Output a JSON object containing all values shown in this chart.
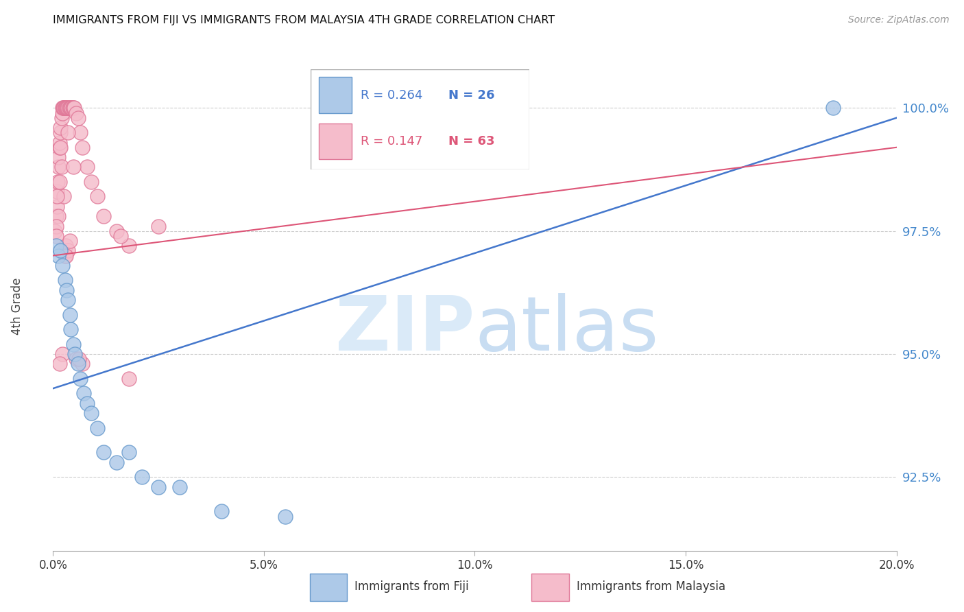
{
  "title": "IMMIGRANTS FROM FIJI VS IMMIGRANTS FROM MALAYSIA 4TH GRADE CORRELATION CHART",
  "source": "Source: ZipAtlas.com",
  "ylabel": "4th Grade",
  "xlim": [
    0.0,
    20.0
  ],
  "ylim": [
    91.0,
    101.2
  ],
  "yticks": [
    92.5,
    95.0,
    97.5,
    100.0
  ],
  "ytick_labels": [
    "92.5%",
    "95.0%",
    "97.5%",
    "100.0%"
  ],
  "xtick_positions": [
    0,
    5,
    10,
    15,
    20
  ],
  "xtick_labels": [
    "0.0%",
    "5.0%",
    "10.0%",
    "15.0%",
    "20.0%"
  ],
  "legend_fiji_R": "0.264",
  "legend_fiji_N": "26",
  "legend_malaysia_R": "0.147",
  "legend_malaysia_N": "63",
  "fiji_face_color": "#adc9e8",
  "fiji_edge_color": "#6699cc",
  "malaysia_face_color": "#f5bccb",
  "malaysia_edge_color": "#e07898",
  "fiji_line_color": "#4477cc",
  "malaysia_line_color": "#dd5577",
  "watermark_zip_color": "#daeaf8",
  "watermark_atlas_color": "#c8ddf2",
  "fiji_x": [
    0.08,
    0.12,
    0.18,
    0.22,
    0.28,
    0.32,
    0.35,
    0.4,
    0.42,
    0.48,
    0.52,
    0.6,
    0.65,
    0.72,
    0.8,
    0.9,
    1.05,
    1.2,
    1.5,
    1.8,
    2.1,
    2.5,
    3.0,
    4.0,
    5.5,
    18.5
  ],
  "fiji_y": [
    97.2,
    97.0,
    97.1,
    96.8,
    96.5,
    96.3,
    96.1,
    95.8,
    95.5,
    95.2,
    95.0,
    94.8,
    94.5,
    94.2,
    94.0,
    93.8,
    93.5,
    93.0,
    92.8,
    93.0,
    92.5,
    92.3,
    92.3,
    91.8,
    91.7,
    100.0
  ],
  "malaysia_x": [
    0.05,
    0.07,
    0.09,
    0.1,
    0.11,
    0.12,
    0.13,
    0.15,
    0.15,
    0.17,
    0.18,
    0.2,
    0.22,
    0.22,
    0.24,
    0.25,
    0.26,
    0.28,
    0.29,
    0.3,
    0.32,
    0.34,
    0.36,
    0.38,
    0.4,
    0.42,
    0.44,
    0.46,
    0.48,
    0.5,
    0.55,
    0.6,
    0.65,
    0.7,
    0.8,
    0.9,
    1.05,
    1.2,
    1.5,
    1.8,
    2.5,
    1.6,
    0.3,
    0.28,
    0.25,
    0.2,
    0.18,
    0.15,
    0.12,
    0.1,
    0.08,
    0.08,
    1.8,
    0.35,
    0.4,
    0.55,
    0.7,
    0.35,
    0.48,
    0.62,
    0.22,
    0.15,
    0.3
  ],
  "malaysia_y": [
    97.5,
    97.8,
    98.0,
    98.3,
    98.5,
    98.8,
    99.0,
    99.2,
    99.3,
    99.5,
    99.6,
    99.8,
    99.9,
    100.0,
    100.0,
    100.0,
    100.0,
    100.0,
    100.0,
    100.0,
    100.0,
    100.0,
    100.0,
    100.0,
    100.0,
    100.0,
    100.0,
    100.0,
    100.0,
    100.0,
    99.9,
    99.8,
    99.5,
    99.2,
    98.8,
    98.5,
    98.2,
    97.8,
    97.5,
    97.2,
    97.6,
    97.4,
    97.2,
    97.0,
    98.2,
    98.8,
    99.2,
    98.5,
    97.8,
    98.2,
    97.6,
    97.4,
    94.5,
    97.1,
    97.3,
    94.9,
    94.8,
    99.5,
    98.8,
    94.9,
    95.0,
    94.8,
    97.0
  ],
  "fiji_line_x0": 0.0,
  "fiji_line_y0": 94.3,
  "fiji_line_x1": 20.0,
  "fiji_line_y1": 99.8,
  "malaysia_line_x0": 0.0,
  "malaysia_line_y0": 97.0,
  "malaysia_line_x1": 20.0,
  "malaysia_line_y1": 99.2
}
